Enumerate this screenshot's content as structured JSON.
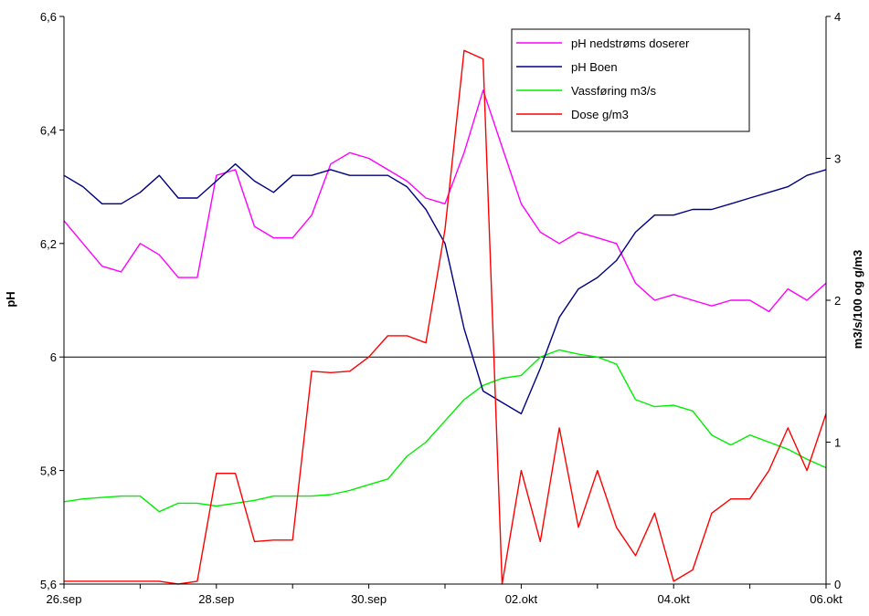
{
  "chart_data": {
    "type": "line",
    "title": "",
    "xlabel": "",
    "ylabel": "pH",
    "y2label": "m3/s/100 og g/m3",
    "x_range": [
      "2023-09-26",
      "2023-10-06"
    ],
    "ylim": [
      5.6,
      6.6
    ],
    "y2lim": [
      0,
      4
    ],
    "x_ticks": [
      {
        "label": "26.sep",
        "x": "2023-09-26"
      },
      {
        "label": "28.sep",
        "x": "2023-09-28"
      },
      {
        "label": "30.sep",
        "x": "2023-09-30"
      },
      {
        "label": "02.okt",
        "x": "2023-10-02"
      },
      {
        "label": "04.okt",
        "x": "2023-10-04"
      },
      {
        "label": "06.okt",
        "x": "2023-10-06"
      }
    ],
    "y_ticks": [
      "5,6",
      "5,8",
      "6",
      "6,2",
      "6,4",
      "6,6"
    ],
    "y2_ticks": [
      "0",
      "1",
      "2",
      "3",
      "4"
    ],
    "reference_line": 6.0,
    "grid": false,
    "legend_position": "top-right",
    "series": [
      {
        "name": "pH nedstrøms doserer",
        "axis": "left",
        "color": "#ff00ff",
        "x": [
          "2023-09-26 00:00",
          "2023-09-26 06:00",
          "2023-09-26 12:00",
          "2023-09-26 18:00",
          "2023-09-27 00:00",
          "2023-09-27 06:00",
          "2023-09-27 12:00",
          "2023-09-27 18:00",
          "2023-09-28 00:00",
          "2023-09-28 06:00",
          "2023-09-28 12:00",
          "2023-09-28 18:00",
          "2023-09-29 00:00",
          "2023-09-29 06:00",
          "2023-09-29 12:00",
          "2023-09-29 18:00",
          "2023-09-30 00:00",
          "2023-09-30 06:00",
          "2023-09-30 12:00",
          "2023-09-30 18:00",
          "2023-10-01 00:00",
          "2023-10-01 06:00",
          "2023-10-01 12:00",
          "2023-10-01 18:00",
          "2023-10-02 00:00",
          "2023-10-02 06:00",
          "2023-10-02 12:00",
          "2023-10-02 18:00",
          "2023-10-03 00:00",
          "2023-10-03 06:00",
          "2023-10-03 12:00",
          "2023-10-03 18:00",
          "2023-10-04 00:00",
          "2023-10-04 06:00",
          "2023-10-04 12:00",
          "2023-10-04 18:00",
          "2023-10-05 00:00",
          "2023-10-05 06:00",
          "2023-10-05 12:00",
          "2023-10-05 18:00",
          "2023-10-06 00:00"
        ],
        "values": [
          6.24,
          6.2,
          6.16,
          6.15,
          6.2,
          6.18,
          6.14,
          6.14,
          6.32,
          6.33,
          6.23,
          6.21,
          6.21,
          6.25,
          6.34,
          6.36,
          6.35,
          6.33,
          6.31,
          6.28,
          6.27,
          6.36,
          6.47,
          6.37,
          6.27,
          6.22,
          6.2,
          6.22,
          6.21,
          6.2,
          6.13,
          6.1,
          6.11,
          6.1,
          6.09,
          6.1,
          6.1,
          6.08,
          6.12,
          6.1,
          6.13
        ]
      },
      {
        "name": "pH Boen",
        "axis": "left",
        "color": "#000080",
        "x": [
          "2023-09-26 00:00",
          "2023-09-26 06:00",
          "2023-09-26 12:00",
          "2023-09-26 18:00",
          "2023-09-27 00:00",
          "2023-09-27 06:00",
          "2023-09-27 12:00",
          "2023-09-27 18:00",
          "2023-09-28 00:00",
          "2023-09-28 06:00",
          "2023-09-28 12:00",
          "2023-09-28 18:00",
          "2023-09-29 00:00",
          "2023-09-29 06:00",
          "2023-09-29 12:00",
          "2023-09-29 18:00",
          "2023-09-30 00:00",
          "2023-09-30 06:00",
          "2023-09-30 12:00",
          "2023-09-30 18:00",
          "2023-10-01 00:00",
          "2023-10-01 06:00",
          "2023-10-01 12:00",
          "2023-10-01 18:00",
          "2023-10-02 00:00",
          "2023-10-02 06:00",
          "2023-10-02 12:00",
          "2023-10-02 18:00",
          "2023-10-03 00:00",
          "2023-10-03 06:00",
          "2023-10-03 12:00",
          "2023-10-03 18:00",
          "2023-10-04 00:00",
          "2023-10-04 06:00",
          "2023-10-04 12:00",
          "2023-10-04 18:00",
          "2023-10-05 00:00",
          "2023-10-05 06:00",
          "2023-10-05 12:00",
          "2023-10-05 18:00",
          "2023-10-06 00:00"
        ],
        "values": [
          6.32,
          6.3,
          6.27,
          6.27,
          6.29,
          6.32,
          6.28,
          6.28,
          6.31,
          6.34,
          6.31,
          6.29,
          6.32,
          6.32,
          6.33,
          6.32,
          6.32,
          6.32,
          6.3,
          6.26,
          6.2,
          6.05,
          5.94,
          5.92,
          5.9,
          5.98,
          6.07,
          6.12,
          6.14,
          6.17,
          6.22,
          6.25,
          6.25,
          6.26,
          6.26,
          6.27,
          6.28,
          6.29,
          6.3,
          6.32,
          6.33
        ]
      },
      {
        "name": "Vassføring m3/s",
        "axis": "right",
        "color": "#00ee00",
        "x": [
          "2023-09-26 00:00",
          "2023-09-26 06:00",
          "2023-09-26 12:00",
          "2023-09-26 18:00",
          "2023-09-27 00:00",
          "2023-09-27 06:00",
          "2023-09-27 12:00",
          "2023-09-27 18:00",
          "2023-09-28 00:00",
          "2023-09-28 06:00",
          "2023-09-28 12:00",
          "2023-09-28 18:00",
          "2023-09-29 00:00",
          "2023-09-29 06:00",
          "2023-09-29 12:00",
          "2023-09-29 18:00",
          "2023-09-30 00:00",
          "2023-09-30 06:00",
          "2023-09-30 12:00",
          "2023-09-30 18:00",
          "2023-10-01 00:00",
          "2023-10-01 06:00",
          "2023-10-01 12:00",
          "2023-10-01 18:00",
          "2023-10-02 00:00",
          "2023-10-02 06:00",
          "2023-10-02 12:00",
          "2023-10-02 18:00",
          "2023-10-03 00:00",
          "2023-10-03 06:00",
          "2023-10-03 12:00",
          "2023-10-03 18:00",
          "2023-10-04 00:00",
          "2023-10-04 06:00",
          "2023-10-04 12:00",
          "2023-10-04 18:00",
          "2023-10-05 00:00",
          "2023-10-05 06:00",
          "2023-10-05 12:00",
          "2023-10-05 18:00",
          "2023-10-06 00:00"
        ],
        "values": [
          0.58,
          0.6,
          0.61,
          0.62,
          0.62,
          0.51,
          0.57,
          0.57,
          0.55,
          0.57,
          0.59,
          0.62,
          0.62,
          0.62,
          0.63,
          0.66,
          0.7,
          0.74,
          0.9,
          1.0,
          1.15,
          1.3,
          1.4,
          1.45,
          1.47,
          1.6,
          1.65,
          1.62,
          1.6,
          1.55,
          1.3,
          1.25,
          1.26,
          1.22,
          1.05,
          0.98,
          1.05,
          1.0,
          0.95,
          0.88,
          0.82
        ]
      },
      {
        "name": "Dose g/m3",
        "axis": "right",
        "color": "#ff0000",
        "x": [
          "2023-09-26 00:00",
          "2023-09-26 06:00",
          "2023-09-26 12:00",
          "2023-09-26 18:00",
          "2023-09-27 00:00",
          "2023-09-27 06:00",
          "2023-09-27 12:00",
          "2023-09-27 18:00",
          "2023-09-28 00:00",
          "2023-09-28 06:00",
          "2023-09-28 12:00",
          "2023-09-28 18:00",
          "2023-09-29 00:00",
          "2023-09-29 06:00",
          "2023-09-29 12:00",
          "2023-09-29 18:00",
          "2023-09-30 00:00",
          "2023-09-30 06:00",
          "2023-09-30 12:00",
          "2023-09-30 18:00",
          "2023-10-01 00:00",
          "2023-10-01 06:00",
          "2023-10-01 12:00",
          "2023-10-01 18:00",
          "2023-10-02 00:00",
          "2023-10-02 06:00",
          "2023-10-02 12:00",
          "2023-10-02 18:00",
          "2023-10-03 00:00",
          "2023-10-03 06:00",
          "2023-10-03 12:00",
          "2023-10-03 18:00",
          "2023-10-04 00:00",
          "2023-10-04 06:00",
          "2023-10-04 12:00",
          "2023-10-04 18:00",
          "2023-10-05 00:00",
          "2023-10-05 06:00",
          "2023-10-05 12:00",
          "2023-10-05 18:00",
          "2023-10-06 00:00"
        ],
        "values": [
          0.02,
          0.02,
          0.02,
          0.02,
          0.02,
          0.02,
          0.0,
          0.02,
          0.78,
          0.78,
          0.3,
          0.31,
          0.31,
          1.5,
          1.49,
          1.5,
          1.6,
          1.75,
          1.75,
          1.7,
          2.5,
          3.76,
          3.7,
          0.0,
          0.8,
          0.3,
          1.1,
          0.4,
          0.8,
          0.4,
          0.2,
          0.5,
          0.02,
          0.1,
          0.5,
          0.6,
          0.6,
          0.8,
          1.1,
          0.8,
          1.2
        ]
      }
    ]
  }
}
